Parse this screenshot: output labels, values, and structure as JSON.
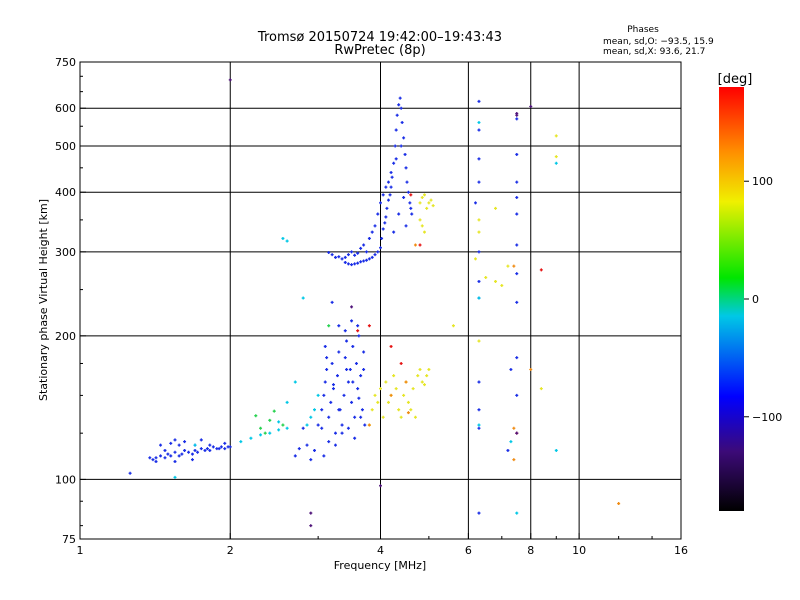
{
  "chart_data": {
    "type": "scatter",
    "title": "Tromsø 20150724 19:42:00–19:43:43",
    "subtitle": "RwPretec (8p)",
    "xlabel": "Frequency [MHz]",
    "ylabel": "Stationary phase Virtual Height [km]",
    "x_scale": "log",
    "y_scale": "log",
    "xlim": [
      1,
      16
    ],
    "ylim": [
      75,
      750
    ],
    "x_ticks": [
      {
        "value": 1,
        "label": "1"
      },
      {
        "value": 2,
        "label": "2"
      },
      {
        "value": 4,
        "label": "4"
      },
      {
        "value": 6,
        "label": "6"
      },
      {
        "value": 8,
        "label": "8"
      },
      {
        "value": 10,
        "label": "10"
      },
      {
        "value": 16,
        "label": "16"
      }
    ],
    "y_ticks": [
      {
        "value": 75,
        "label": "75"
      },
      {
        "value": 100,
        "label": "100"
      },
      {
        "value": 200,
        "label": "200"
      },
      {
        "value": 300,
        "label": "300"
      },
      {
        "value": 400,
        "label": "400"
      },
      {
        "value": 500,
        "label": "500"
      },
      {
        "value": 600,
        "label": "600"
      },
      {
        "value": 750,
        "label": "750"
      }
    ],
    "grid": true,
    "stats_title": "Phases",
    "stats": [
      "mean, sd,O: −93.5, 15.9",
      "mean, sd,X:  93.6, 21.7"
    ],
    "colorbar": {
      "label": "[deg]",
      "range": [
        -180,
        180
      ],
      "ticks": [
        {
          "value": 100,
          "label": "100"
        },
        {
          "value": 0,
          "label": "0"
        },
        {
          "value": -100,
          "label": "−100"
        }
      ]
    },
    "series": [
      {
        "color": "#1a2ee6",
        "points": [
          [
            1.26,
            103
          ],
          [
            1.38,
            111
          ],
          [
            1.4,
            110
          ],
          [
            1.42,
            111
          ],
          [
            1.45,
            112
          ],
          [
            1.48,
            111
          ],
          [
            1.5,
            113
          ],
          [
            1.52,
            112
          ],
          [
            1.55,
            114
          ],
          [
            1.58,
            112
          ],
          [
            1.6,
            113
          ],
          [
            1.62,
            115
          ],
          [
            1.65,
            114
          ],
          [
            1.68,
            113
          ],
          [
            1.7,
            115
          ],
          [
            1.72,
            114
          ],
          [
            1.75,
            116
          ],
          [
            1.78,
            115
          ],
          [
            1.8,
            116
          ],
          [
            1.82,
            115
          ],
          [
            1.85,
            117
          ],
          [
            1.88,
            116
          ],
          [
            1.9,
            116
          ],
          [
            1.92,
            117
          ],
          [
            1.95,
            116
          ],
          [
            1.98,
            117
          ],
          [
            2.0,
            117
          ],
          [
            1.45,
            118
          ],
          [
            1.52,
            119
          ],
          [
            1.55,
            121
          ],
          [
            1.62,
            120
          ],
          [
            1.7,
            118
          ],
          [
            1.75,
            121
          ],
          [
            1.48,
            115
          ],
          [
            1.58,
            118
          ],
          [
            1.82,
            118
          ],
          [
            1.95,
            119
          ],
          [
            1.42,
            109
          ],
          [
            1.55,
            109
          ],
          [
            1.68,
            110
          ],
          [
            3.0,
            130
          ],
          [
            3.05,
            140
          ],
          [
            3.08,
            150
          ],
          [
            3.1,
            160
          ],
          [
            3.12,
            170
          ],
          [
            3.15,
            135
          ],
          [
            3.18,
            145
          ],
          [
            3.2,
            175
          ],
          [
            3.22,
            155
          ],
          [
            3.25,
            125
          ],
          [
            3.28,
            165
          ],
          [
            3.3,
            185
          ],
          [
            3.32,
            140
          ],
          [
            3.35,
            130
          ],
          [
            3.38,
            150
          ],
          [
            3.4,
            180
          ],
          [
            3.42,
            195
          ],
          [
            3.45,
            160
          ],
          [
            3.48,
            170
          ],
          [
            3.5,
            145
          ],
          [
            3.52,
            190
          ],
          [
            3.55,
            135
          ],
          [
            3.58,
            175
          ],
          [
            3.6,
            155
          ],
          [
            3.62,
            200
          ],
          [
            3.65,
            165
          ],
          [
            3.68,
            140
          ],
          [
            3.7,
            185
          ],
          [
            3.72,
            130
          ],
          [
            3.15,
            120
          ],
          [
            3.25,
            118
          ],
          [
            3.35,
            125
          ],
          [
            3.45,
            128
          ],
          [
            3.55,
            122
          ],
          [
            3.65,
            135
          ],
          [
            3.05,
            128
          ],
          [
            3.3,
            210
          ],
          [
            3.5,
            215
          ],
          [
            3.6,
            210
          ],
          [
            3.2,
            235
          ],
          [
            3.1,
            190
          ],
          [
            3.4,
            205
          ],
          [
            3.7,
            170
          ],
          [
            3.08,
            112
          ],
          [
            3.3,
            140
          ],
          [
            3.52,
            160
          ],
          [
            3.62,
            148
          ],
          [
            3.42,
            170
          ],
          [
            3.22,
            158
          ],
          [
            3.12,
            180
          ],
          [
            2.9,
            110
          ],
          [
            2.95,
            115
          ],
          [
            2.8,
            128
          ],
          [
            2.85,
            118
          ],
          [
            2.7,
            112
          ],
          [
            2.75,
            116
          ],
          [
            3.4,
            285
          ],
          [
            3.45,
            283
          ],
          [
            3.5,
            282
          ],
          [
            3.55,
            283
          ],
          [
            3.6,
            284
          ],
          [
            3.65,
            286
          ],
          [
            3.7,
            287
          ],
          [
            3.75,
            288
          ],
          [
            3.8,
            290
          ],
          [
            3.85,
            292
          ],
          [
            3.9,
            296
          ],
          [
            3.95,
            300
          ],
          [
            4.0,
            306
          ],
          [
            4.02,
            320
          ],
          [
            4.05,
            335
          ],
          [
            4.08,
            345
          ],
          [
            4.1,
            355
          ],
          [
            4.12,
            370
          ],
          [
            4.15,
            385
          ],
          [
            4.18,
            395
          ],
          [
            4.2,
            410
          ],
          [
            4.22,
            430
          ],
          [
            4.25,
            460
          ],
          [
            4.28,
            500
          ],
          [
            4.3,
            540
          ],
          [
            4.32,
            580
          ],
          [
            4.35,
            610
          ],
          [
            4.38,
            630
          ],
          [
            4.4,
            600
          ],
          [
            4.42,
            560
          ],
          [
            4.45,
            520
          ],
          [
            4.48,
            480
          ],
          [
            4.5,
            450
          ],
          [
            4.52,
            420
          ],
          [
            4.55,
            400
          ],
          [
            4.58,
            380
          ],
          [
            4.6,
            370
          ],
          [
            4.62,
            360
          ],
          [
            3.9,
            340
          ],
          [
            3.95,
            360
          ],
          [
            4.0,
            380
          ],
          [
            4.05,
            395
          ],
          [
            4.1,
            410
          ],
          [
            3.85,
            330
          ],
          [
            3.8,
            320
          ],
          [
            4.15,
            420
          ],
          [
            4.2,
            440
          ],
          [
            4.3,
            470
          ],
          [
            4.4,
            500
          ],
          [
            4.45,
            390
          ],
          [
            4.35,
            360
          ],
          [
            4.5,
            340
          ],
          [
            4.25,
            330
          ],
          [
            3.7,
            310
          ],
          [
            3.75,
            300
          ],
          [
            3.65,
            305
          ],
          [
            3.6,
            298
          ],
          [
            3.55,
            295
          ],
          [
            3.5,
            300
          ],
          [
            3.45,
            296
          ],
          [
            3.4,
            292
          ],
          [
            3.35,
            290
          ],
          [
            3.3,
            293
          ],
          [
            3.25,
            292
          ],
          [
            3.2,
            296
          ],
          [
            3.15,
            299
          ],
          [
            6.3,
            620
          ],
          [
            6.3,
            540
          ],
          [
            6.3,
            470
          ],
          [
            6.3,
            420
          ],
          [
            6.3,
            300
          ],
          [
            6.3,
            260
          ],
          [
            6.3,
            240
          ],
          [
            7.5,
            570
          ],
          [
            7.5,
            480
          ],
          [
            7.5,
            420
          ],
          [
            7.5,
            390
          ],
          [
            7.5,
            360
          ],
          [
            7.5,
            310
          ],
          [
            7.5,
            270
          ],
          [
            7.5,
            235
          ],
          [
            7.5,
            180
          ],
          [
            7.5,
            150
          ],
          [
            7.3,
            170
          ],
          [
            7.2,
            115
          ],
          [
            6.2,
            380
          ],
          [
            6.3,
            160
          ],
          [
            6.3,
            140
          ],
          [
            6.3,
            128
          ],
          [
            6.3,
            85
          ]
        ]
      },
      {
        "color": "#00c8e6",
        "points": [
          [
            1.55,
            101
          ],
          [
            1.7,
            118
          ],
          [
            2.1,
            120
          ],
          [
            2.2,
            122
          ],
          [
            2.3,
            124
          ],
          [
            2.4,
            125
          ],
          [
            2.5,
            127
          ],
          [
            2.6,
            128
          ],
          [
            2.5,
            132
          ],
          [
            2.55,
            320
          ],
          [
            2.6,
            316
          ],
          [
            2.8,
            240
          ],
          [
            2.85,
            130
          ],
          [
            2.9,
            135
          ],
          [
            2.6,
            145
          ],
          [
            2.7,
            160
          ],
          [
            2.95,
            140
          ],
          [
            3.0,
            150
          ],
          [
            6.3,
            560
          ],
          [
            6.3,
            240
          ],
          [
            6.3,
            130
          ],
          [
            7.3,
            120
          ],
          [
            7.5,
            85
          ],
          [
            9.0,
            460
          ],
          [
            9.0,
            115
          ]
        ]
      },
      {
        "color": "#28d250",
        "points": [
          [
            2.3,
            128
          ],
          [
            2.4,
            133
          ],
          [
            2.25,
            136
          ],
          [
            2.45,
            139
          ],
          [
            3.15,
            210
          ],
          [
            2.35,
            125
          ],
          [
            2.55,
            130
          ]
        ]
      },
      {
        "color": "#e6e628",
        "points": [
          [
            3.8,
            130
          ],
          [
            3.85,
            140
          ],
          [
            3.9,
            150
          ],
          [
            3.95,
            145
          ],
          [
            4.0,
            155
          ],
          [
            4.05,
            135
          ],
          [
            4.1,
            160
          ],
          [
            4.15,
            145
          ],
          [
            4.2,
            150
          ],
          [
            4.25,
            165
          ],
          [
            4.3,
            155
          ],
          [
            4.35,
            140
          ],
          [
            4.4,
            135
          ],
          [
            4.45,
            150
          ],
          [
            4.5,
            160
          ],
          [
            4.55,
            145
          ],
          [
            4.6,
            140
          ],
          [
            4.65,
            155
          ],
          [
            4.7,
            135
          ],
          [
            4.75,
            165
          ],
          [
            4.8,
            170
          ],
          [
            4.85,
            160
          ],
          [
            4.9,
            158
          ],
          [
            4.95,
            165
          ],
          [
            5.0,
            170
          ],
          [
            4.8,
            380
          ],
          [
            4.85,
            390
          ],
          [
            4.9,
            395
          ],
          [
            4.95,
            370
          ],
          [
            5.0,
            380
          ],
          [
            5.05,
            385
          ],
          [
            5.1,
            375
          ],
          [
            4.8,
            350
          ],
          [
            4.85,
            340
          ],
          [
            4.9,
            330
          ],
          [
            5.6,
            210
          ],
          [
            6.2,
            290
          ],
          [
            6.3,
            195
          ],
          [
            6.3,
            350
          ],
          [
            6.3,
            330
          ],
          [
            6.5,
            265
          ],
          [
            6.8,
            260
          ],
          [
            7.0,
            255
          ],
          [
            7.2,
            280
          ],
          [
            6.8,
            370
          ],
          [
            8.4,
            155
          ],
          [
            9.0,
            525
          ],
          [
            9.0,
            475
          ]
        ]
      },
      {
        "color": "#f08c14",
        "points": [
          [
            3.8,
            130
          ],
          [
            4.2,
            150
          ],
          [
            4.5,
            160
          ],
          [
            4.55,
            138
          ],
          [
            7.4,
            280
          ],
          [
            7.4,
            128
          ],
          [
            7.4,
            110
          ],
          [
            12.0,
            89
          ],
          [
            4.7,
            310
          ],
          [
            8.0,
            170
          ]
        ]
      },
      {
        "color": "#e61414",
        "points": [
          [
            4.2,
            190
          ],
          [
            4.4,
            175
          ],
          [
            3.8,
            210
          ],
          [
            4.8,
            310
          ],
          [
            8.4,
            275
          ],
          [
            7.5,
            125
          ],
          [
            3.6,
            205
          ],
          [
            4.6,
            395
          ]
        ]
      },
      {
        "color": "#50147a",
        "points": [
          [
            2.0,
            688
          ],
          [
            2.9,
            80
          ],
          [
            2.9,
            85
          ],
          [
            4.0,
            97
          ],
          [
            7.5,
            585
          ],
          [
            8.0,
            605
          ],
          [
            7.5,
            125
          ],
          [
            7.5,
            580
          ],
          [
            3.5,
            230
          ]
        ]
      }
    ]
  }
}
